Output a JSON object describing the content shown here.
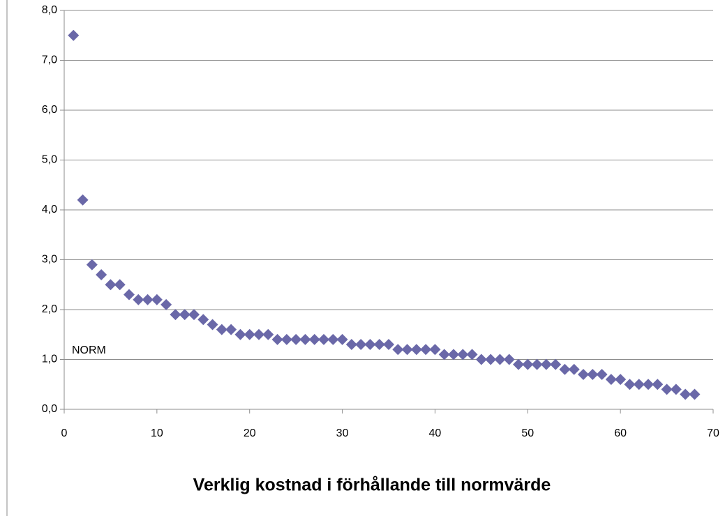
{
  "chart_data": {
    "type": "scatter",
    "title": "Verklig kostnad i förhållande till normvärde",
    "annotation": "NORM",
    "x": [
      1,
      2,
      3,
      4,
      5,
      6,
      7,
      8,
      9,
      10,
      11,
      12,
      13,
      14,
      15,
      16,
      17,
      18,
      19,
      20,
      21,
      22,
      23,
      24,
      25,
      26,
      27,
      28,
      29,
      30,
      31,
      32,
      33,
      34,
      35,
      36,
      37,
      38,
      39,
      40,
      41,
      42,
      43,
      44,
      45,
      46,
      47,
      48,
      49,
      50,
      51,
      52,
      53,
      54,
      55,
      56,
      57,
      58,
      59,
      60,
      61,
      62,
      63,
      64,
      65,
      66,
      67,
      68
    ],
    "values": [
      7.5,
      4.2,
      2.9,
      2.7,
      2.5,
      2.5,
      2.3,
      2.2,
      2.2,
      2.2,
      2.1,
      1.9,
      1.9,
      1.9,
      1.8,
      1.7,
      1.6,
      1.6,
      1.5,
      1.5,
      1.5,
      1.5,
      1.4,
      1.4,
      1.4,
      1.4,
      1.4,
      1.4,
      1.4,
      1.4,
      1.3,
      1.3,
      1.3,
      1.3,
      1.3,
      1.2,
      1.2,
      1.2,
      1.2,
      1.2,
      1.1,
      1.1,
      1.1,
      1.1,
      1.0,
      1.0,
      1.0,
      1.0,
      0.9,
      0.9,
      0.9,
      0.9,
      0.9,
      0.8,
      0.8,
      0.7,
      0.7,
      0.7,
      0.6,
      0.6,
      0.5,
      0.5,
      0.5,
      0.5,
      0.4,
      0.4,
      0.3,
      0.3
    ],
    "color": "#6a68a8",
    "xlim": [
      0,
      70
    ],
    "xticks": [
      0,
      10,
      20,
      30,
      40,
      50,
      60,
      70
    ],
    "ylim": [
      0,
      8
    ],
    "yticks": [
      {
        "value": 0,
        "label": "0,0"
      },
      {
        "value": 1,
        "label": "1,0"
      },
      {
        "value": 2,
        "label": "2,0"
      },
      {
        "value": 3,
        "label": "3,0"
      },
      {
        "value": 4,
        "label": "4,0"
      },
      {
        "value": 5,
        "label": "5,0"
      },
      {
        "value": 6,
        "label": "6,0"
      },
      {
        "value": 7,
        "label": "7,0"
      },
      {
        "value": 8,
        "label": "8,0"
      }
    ],
    "grid": true
  }
}
